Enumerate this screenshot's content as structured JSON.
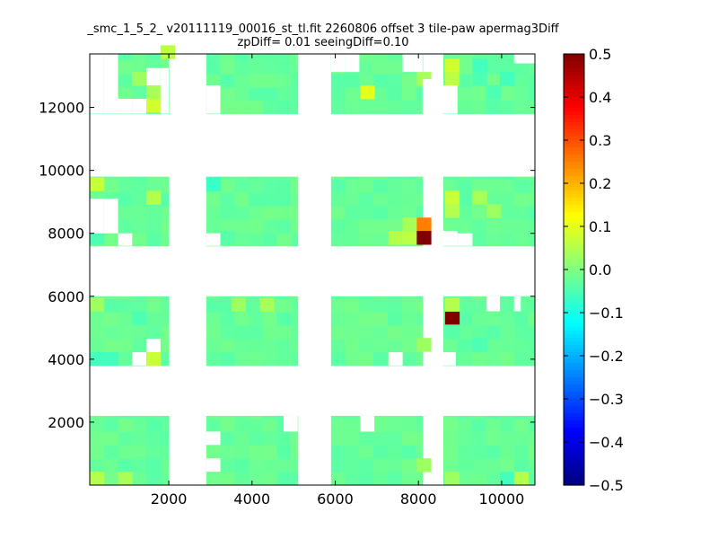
{
  "chart_data": {
    "type": "heatmap",
    "title_line1": "_smc_1_5_2_ v20111119_00016_st_tl.fit 2260806 offset 3 tile-paw apermag3Diff",
    "title_line2": "zpDiff= 0.01 seeingDiff=0.10",
    "xlabel": "",
    "ylabel": "",
    "xlim": [
      100,
      10800
    ],
    "ylim": [
      0,
      13700
    ],
    "xticks": [
      "2000",
      "4000",
      "6000",
      "8000",
      "10000"
    ],
    "yticks": [
      "2000",
      "4000",
      "6000",
      "8000",
      "10000",
      "12000"
    ],
    "colorbar": {
      "colormap": "jet",
      "vmin": -0.5,
      "vmax": 0.5,
      "ticks": [
        "0.5",
        "0.4",
        "0.3",
        "0.2",
        "0.1",
        "0.0",
        "−0.1",
        "−0.2",
        "−0.3",
        "−0.4",
        "−0.5"
      ]
    },
    "cell_width": 340,
    "cell_height": 425,
    "detector_columns": [
      [
        100,
        2000
      ],
      [
        2900,
        5100
      ],
      [
        5900,
        8100
      ],
      [
        8600,
        10800
      ]
    ],
    "detector_rows": [
      [
        0,
        2200
      ],
      [
        3800,
        6000
      ],
      [
        7600,
        9800
      ],
      [
        11800,
        13700
      ]
    ],
    "background_value": -0.01,
    "cells": [
      {
        "x": 100,
        "y": 0,
        "v": 0.05
      },
      {
        "x": 780,
        "y": 0,
        "v": 0.04
      },
      {
        "x": 1460,
        "y": 425,
        "v": -0.04
      },
      {
        "x": 9960,
        "y": 0,
        "v": -0.06
      },
      {
        "x": 10300,
        "y": 0,
        "v": 0.05
      },
      {
        "x": 8640,
        "y": 0,
        "v": 0.03
      },
      {
        "x": 7960,
        "y": 425,
        "v": 0.03
      },
      {
        "x": 1460,
        "y": 1700,
        "v": -0.04
      },
      {
        "x": 100,
        "y": 3800,
        "v": -0.06
      },
      {
        "x": 440,
        "y": 3800,
        "v": -0.06
      },
      {
        "x": 1460,
        "y": 3800,
        "v": 0.07
      },
      {
        "x": 1120,
        "y": 3800,
        "v": -0.03
      },
      {
        "x": 1120,
        "y": 5100,
        "v": -0.05
      },
      {
        "x": 3500,
        "y": 5525,
        "v": 0.03
      },
      {
        "x": 4180,
        "y": 5525,
        "v": 0.04
      },
      {
        "x": 100,
        "y": 5525,
        "v": 0.03
      },
      {
        "x": 8640,
        "y": 5100,
        "v": 0.5
      },
      {
        "x": 8640,
        "y": 5525,
        "v": 0.05
      },
      {
        "x": 8640,
        "y": 4675,
        "v": -0.04
      },
      {
        "x": 9300,
        "y": 4250,
        "v": -0.05
      },
      {
        "x": 7960,
        "y": 4250,
        "v": 0.03
      },
      {
        "x": 100,
        "y": 7650,
        "v": -0.05
      },
      {
        "x": 100,
        "y": 9350,
        "v": 0.07
      },
      {
        "x": 1460,
        "y": 8925,
        "v": 0.05
      },
      {
        "x": 1460,
        "y": 8075,
        "v": -0.03
      },
      {
        "x": 2900,
        "y": 9350,
        "v": -0.07
      },
      {
        "x": 3240,
        "y": 7650,
        "v": -0.04
      },
      {
        "x": 7280,
        "y": 7650,
        "v": 0.05
      },
      {
        "x": 7620,
        "y": 7650,
        "v": 0.06
      },
      {
        "x": 7620,
        "y": 8075,
        "v": 0.04
      },
      {
        "x": 7960,
        "y": 8075,
        "v": 0.25
      },
      {
        "x": 7960,
        "y": 7650,
        "v": 0.5
      },
      {
        "x": 8640,
        "y": 7650,
        "v": -0.05
      },
      {
        "x": 8640,
        "y": 8925,
        "v": 0.07
      },
      {
        "x": 8640,
        "y": 8500,
        "v": 0.05
      },
      {
        "x": 9300,
        "y": 8925,
        "v": 0.04
      },
      {
        "x": 9640,
        "y": 8500,
        "v": 0.03
      },
      {
        "x": 100,
        "y": 11850,
        "v": 0.0
      },
      {
        "x": 1120,
        "y": 11850,
        "v": -0.06
      },
      {
        "x": 1460,
        "y": 11850,
        "v": 0.08
      },
      {
        "x": 1460,
        "y": 12275,
        "v": 0.04
      },
      {
        "x": 1800,
        "y": 13550,
        "v": 0.06
      },
      {
        "x": 1120,
        "y": 12700,
        "v": 0.03
      },
      {
        "x": 6600,
        "y": 12275,
        "v": 0.1
      },
      {
        "x": 7960,
        "y": 12700,
        "v": 0.04
      },
      {
        "x": 7620,
        "y": 13125,
        "v": -0.03
      },
      {
        "x": 7960,
        "y": 11850,
        "v": -0.03
      },
      {
        "x": 8640,
        "y": 12700,
        "v": 0.06
      },
      {
        "x": 8640,
        "y": 13125,
        "v": 0.08
      },
      {
        "x": 9300,
        "y": 12700,
        "v": -0.05
      },
      {
        "x": 9300,
        "y": 13125,
        "v": -0.06
      },
      {
        "x": 9960,
        "y": 12700,
        "v": -0.06
      },
      {
        "x": 9640,
        "y": 12275,
        "v": -0.05
      }
    ],
    "gaps": [
      {
        "x": [
          1120,
          1460
        ],
        "y": [
          3800,
          4225
        ]
      },
      {
        "x": [
          1460,
          1800
        ],
        "y": [
          4225,
          4650
        ]
      },
      {
        "x": [
          2900,
          3240
        ],
        "y": [
          425,
          850
        ]
      },
      {
        "x": [
          2900,
          3240
        ],
        "y": [
          1275,
          1700
        ]
      },
      {
        "x": [
          7280,
          7620
        ],
        "y": [
          3800,
          4225
        ]
      },
      {
        "x": [
          4760,
          5100
        ],
        "y": [
          1700,
          2200
        ]
      },
      {
        "x": [
          6600,
          6940
        ],
        "y": [
          1700,
          2200
        ]
      },
      {
        "x": [
          8600,
          8900
        ],
        "y": [
          3800,
          4225
        ]
      },
      {
        "x": [
          9640,
          9960
        ],
        "y": [
          5525,
          6000
        ]
      },
      {
        "x": [
          10300,
          10460
        ],
        "y": [
          5525,
          6000
        ]
      },
      {
        "x": [
          2900,
          3240
        ],
        "y": [
          7600,
          8000
        ]
      },
      {
        "x": [
          100,
          440
        ],
        "y": [
          8000,
          9100
        ]
      },
      {
        "x": [
          440,
          780
        ],
        "y": [
          8000,
          9100
        ]
      },
      {
        "x": [
          780,
          1120
        ],
        "y": [
          7600,
          8000
        ]
      },
      {
        "x": [
          8940,
          9300
        ],
        "y": [
          7600,
          8000
        ]
      },
      {
        "x": [
          8600,
          8940
        ],
        "y": [
          7600,
          8075
        ]
      },
      {
        "x": [
          440,
          780
        ],
        "y": [
          11800,
          13700
        ]
      },
      {
        "x": [
          100,
          440
        ],
        "y": [
          11800,
          13700
        ]
      },
      {
        "x": [
          780,
          1120
        ],
        "y": [
          11800,
          12275
        ]
      },
      {
        "x": [
          1120,
          1460
        ],
        "y": [
          11800,
          12275
        ]
      },
      {
        "x": [
          1800,
          2000
        ],
        "y": [
          11800,
          13250
        ]
      },
      {
        "x": [
          1460,
          1800
        ],
        "y": [
          12700,
          13250
        ]
      },
      {
        "x": [
          2900,
          3240
        ],
        "y": [
          11800,
          12700
        ]
      },
      {
        "x": [
          5900,
          6240
        ],
        "y": [
          13125,
          13700
        ]
      },
      {
        "x": [
          6240,
          6580
        ],
        "y": [
          13125,
          13700
        ]
      },
      {
        "x": [
          7620,
          8100
        ],
        "y": [
          13125,
          13700
        ]
      },
      {
        "x": [
          8100,
          8600
        ],
        "y": [
          11800,
          12900
        ]
      },
      {
        "x": [
          8600,
          8940
        ],
        "y": [
          11800,
          12700
        ]
      },
      {
        "x": [
          10300,
          10800
        ],
        "y": [
          13400,
          13700
        ]
      }
    ]
  }
}
